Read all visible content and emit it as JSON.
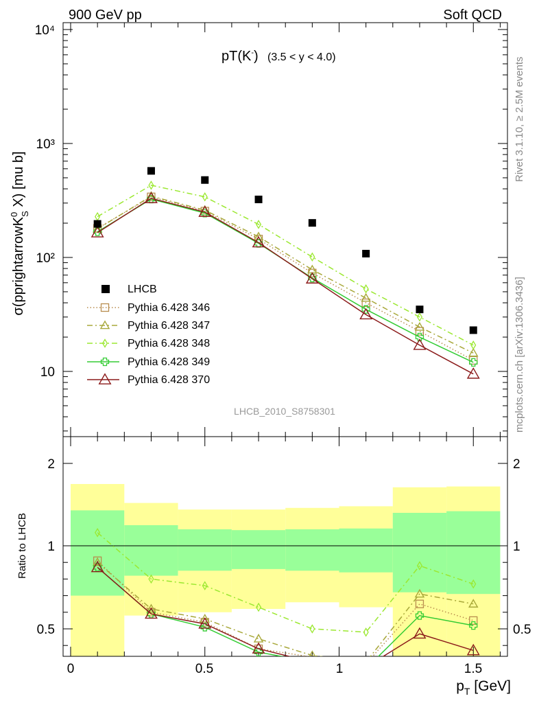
{
  "header": {
    "left": "900 GeV pp",
    "right": "Soft QCD"
  },
  "side_labels": {
    "top": "Rivet 3.1.10, ≥ 2.5M events",
    "bottom": "mcplots.cern.ch [arXiv:1306.3436]"
  },
  "chart_data": {
    "type": "line",
    "title": "pT(K⁻)",
    "subtitle": "(3.5 < y < 4.0)",
    "watermark": "LHCB_2010_S8758301",
    "xlabel": "p_T [GeV]",
    "ylabel": "σ(pprightarrowK⁰_S X) [mu b]",
    "ratio_ylabel": "Ratio to LHCB",
    "xlim": [
      -0.05,
      1.65
    ],
    "ylim": [
      3,
      11000
    ],
    "yscale": "log",
    "ratio_ylim": [
      0.35,
      2.3
    ],
    "x_ticks": [
      "0",
      "0.5",
      "1",
      "1.5"
    ],
    "y_ticks": [
      "10",
      "10²",
      "10³",
      "10⁴"
    ],
    "ratio_ticks": [
      "0.5",
      "1",
      "2"
    ],
    "legend_position": "lower-left",
    "x": [
      0.1,
      0.3,
      0.5,
      0.7,
      0.9,
      1.1,
      1.3,
      1.5
    ],
    "data": {
      "name": "LHCB",
      "values": [
        197,
        575,
        478,
        323,
        201,
        108,
        35,
        23
      ],
      "ratio_band_yellow": [
        [
          0.3,
          1.75
        ],
        [
          0.58,
          1.52
        ],
        [
          0.6,
          1.44
        ],
        [
          0.62,
          1.44
        ],
        [
          0.66,
          1.46
        ],
        [
          0.63,
          1.48
        ],
        [
          0.33,
          1.71
        ],
        [
          0.31,
          1.72
        ]
      ],
      "ratio_band_green": [
        [
          0.7,
          1.43
        ],
        [
          0.82,
          1.25
        ],
        [
          0.85,
          1.2
        ],
        [
          0.86,
          1.19
        ],
        [
          0.85,
          1.2
        ],
        [
          0.84,
          1.21
        ],
        [
          0.72,
          1.4
        ],
        [
          0.71,
          1.42
        ]
      ]
    },
    "series": [
      {
        "name": "Pythia 6.428 346",
        "color": "#b88c4e",
        "style": "dotted",
        "marker": "square",
        "values": [
          180,
          340,
          255,
          145,
          73,
          40,
          22.5,
          12.5
        ],
        "ratio": [
          0.91,
          0.6,
          0.54,
          0.38,
          0.33,
          0.29,
          0.65,
          0.55
        ]
      },
      {
        "name": "Pythia 6.428 347",
        "color": "#a8a83a",
        "style": "dashdot",
        "marker": "triangle",
        "values": [
          178,
          345,
          260,
          152,
          78,
          44,
          24.5,
          14.5
        ],
        "ratio": [
          0.9,
          0.62,
          0.56,
          0.44,
          0.34,
          0.3,
          0.71,
          0.65
        ]
      },
      {
        "name": "Pythia 6.428 348",
        "color": "#9be830",
        "style": "dashdot",
        "marker": "diamond",
        "values": [
          228,
          430,
          340,
          195,
          101,
          53,
          30,
          17
        ],
        "ratio": [
          1.16,
          0.8,
          0.76,
          0.63,
          0.5,
          0.48,
          0.88,
          0.77
        ]
      },
      {
        "name": "Pythia 6.428 349",
        "color": "#33cc33",
        "style": "solid",
        "marker": "cross",
        "values": [
          168,
          325,
          245,
          133,
          66,
          35,
          20,
          12
        ],
        "ratio": [
          0.87,
          0.59,
          0.51,
          0.36,
          0.3,
          0.26,
          0.58,
          0.52
        ]
      },
      {
        "name": "Pythia 6.428 370",
        "color": "#8b1a1a",
        "style": "solid",
        "marker": "triangle-open",
        "values": [
          165,
          330,
          250,
          135,
          65,
          31.5,
          17,
          9.5
        ],
        "ratio": [
          0.87,
          0.59,
          0.53,
          0.38,
          0.3,
          0.27,
          0.47,
          0.37
        ]
      }
    ]
  }
}
